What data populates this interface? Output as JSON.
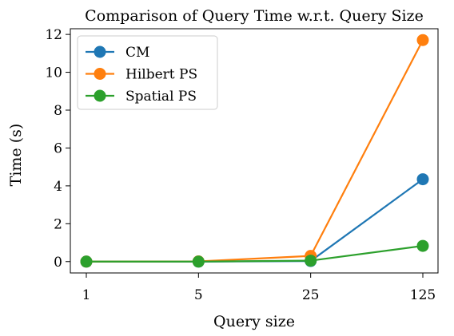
{
  "chart_data": {
    "type": "line",
    "title": "Comparison of Query Time w.r.t. Query Size",
    "xlabel": "Query size",
    "ylabel": "Time (s)",
    "categories": [
      "1",
      "5",
      "25",
      "125"
    ],
    "ylim": [
      -0.6,
      12.3
    ],
    "yticks": [
      0,
      2,
      4,
      6,
      8,
      10,
      12
    ],
    "grid": false,
    "legend_position": "top-left",
    "series": [
      {
        "name": "CM",
        "color": "#1f77b4",
        "values": [
          0.0,
          0.0,
          0.03,
          4.35
        ]
      },
      {
        "name": "Hilbert PS",
        "color": "#ff7f0e",
        "values": [
          0.0,
          0.01,
          0.3,
          11.7
        ]
      },
      {
        "name": "Spatial PS",
        "color": "#2ca02c",
        "values": [
          0.0,
          0.0,
          0.05,
          0.83
        ]
      }
    ]
  }
}
